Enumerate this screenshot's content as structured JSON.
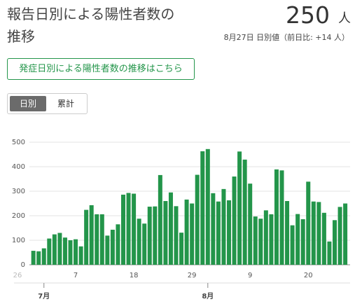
{
  "header": {
    "title": "報告日別による陽性者数の推移",
    "count": 250,
    "count_unit": "人",
    "note": "8月27日 日別値（前日比: +14 人）"
  },
  "link": {
    "label": "発症日別による陽性者数の推移はこちら"
  },
  "toggle": {
    "options": [
      "日別",
      "累計"
    ],
    "selected": 0
  },
  "chart_data": {
    "type": "bar",
    "color": "#23954a",
    "categories": [
      "26",
      null,
      null,
      null,
      null,
      null,
      null,
      null,
      null,
      null,
      null,
      "7",
      null,
      null,
      null,
      null,
      null,
      null,
      null,
      null,
      null,
      null,
      "18",
      null,
      null,
      null,
      null,
      null,
      null,
      null,
      null,
      null,
      null,
      "29",
      null,
      null,
      null,
      null,
      null,
      null,
      null,
      null,
      null,
      null,
      "9",
      null,
      null,
      null,
      null,
      null,
      null,
      null,
      null,
      null,
      null,
      "20",
      null,
      null,
      null,
      null,
      null,
      null,
      null
    ],
    "values": [
      null,
      null,
      null,
      57,
      55,
      67,
      107,
      124,
      130,
      111,
      100,
      104,
      75,
      224,
      243,
      206,
      206,
      119,
      143,
      165,
      286,
      293,
      290,
      188,
      168,
      237,
      238,
      366,
      260,
      295,
      239,
      131,
      266,
      250,
      367,
      463,
      472,
      292,
      258,
      309,
      263,
      360,
      462,
      429,
      331,
      197,
      188,
      222,
      206,
      389,
      385,
      260,
      161,
      207,
      186,
      339,
      258,
      256,
      212,
      95,
      182,
      236,
      250
    ],
    "months": [
      "7月",
      "8月"
    ],
    "ylim": [
      0,
      500
    ],
    "yticks": [
      0,
      100,
      200,
      300,
      400,
      500
    ],
    "grid": true
  }
}
